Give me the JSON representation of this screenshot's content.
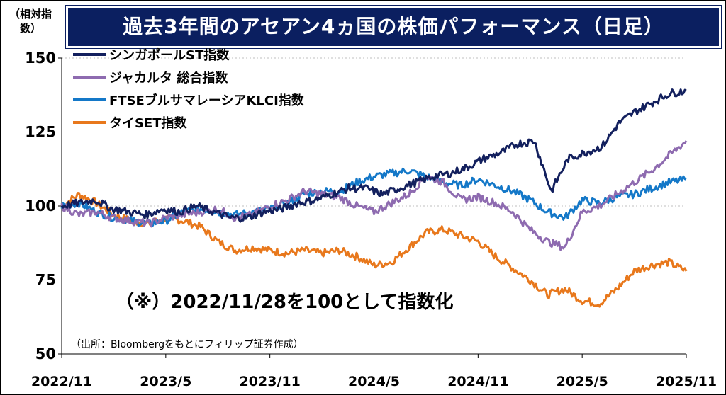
{
  "title": "過去3年間のアセアン4ヵ国の株価パフォーマンス（日足）",
  "unit_label": "（相対指数）",
  "note": "（※）2022/11/28を100として指数化",
  "source": "（出所：Bloombergをもとにフィリップ証券作成）",
  "colors": {
    "title_bg": "#0b1f60",
    "sgx": "#13205e",
    "jakarta": "#8e6bb0",
    "klci": "#1478c8",
    "set": "#e8781c",
    "grid": "#bfbfbf"
  },
  "chart_data": {
    "type": "line",
    "title": "過去3年間のアセアン4ヵ国の株価パフォーマンス（日足）",
    "ylabel": "（相対指数）",
    "xlabel": "",
    "ylim": [
      50,
      150
    ],
    "yticks": [
      50,
      75,
      100,
      125,
      150
    ],
    "xlim": [
      "2022-11-28",
      "2025-11-28"
    ],
    "xticks": [
      "2022/11",
      "2023/5",
      "2023/11",
      "2024/5",
      "2024/11",
      "2025/5",
      "2025/11"
    ],
    "grid": "horizontal dotted",
    "legend": "top-left",
    "series": [
      {
        "name": "シンガポールST指数",
        "color_key": "sgx",
        "x": [
          "2022-11",
          "2023-01",
          "2023-02",
          "2023-03",
          "2023-04",
          "2023-05",
          "2023-06",
          "2023-07",
          "2023-08",
          "2023-09",
          "2023-10",
          "2023-11",
          "2023-12",
          "2024-01",
          "2024-02",
          "2024-03",
          "2024-04",
          "2024-05",
          "2024-06",
          "2024-07",
          "2024-08",
          "2024-09",
          "2024-10",
          "2024-11",
          "2024-12",
          "2025-01",
          "2025-02",
          "2025-03",
          "2025-04a",
          "2025-04b",
          "2025-04c",
          "2025-05",
          "2025-06",
          "2025-07",
          "2025-08",
          "2025-09",
          "2025-10",
          "2025-11"
        ],
        "values": [
          100,
          101,
          102,
          99,
          98,
          97,
          99,
          98,
          100,
          98,
          96,
          96,
          98,
          99,
          101,
          102,
          104,
          106,
          106,
          104,
          106,
          108,
          110,
          111,
          113,
          116,
          118,
          121,
          122,
          105,
          116,
          118,
          120,
          128,
          132,
          135,
          138,
          139
        ]
      },
      {
        "name": "ジャカルタ 総合指数",
        "color_key": "jakarta",
        "x": [
          "2022-11",
          "2023-01",
          "2023-02",
          "2023-03",
          "2023-04",
          "2023-05",
          "2023-06",
          "2023-07",
          "2023-08",
          "2023-09",
          "2023-10",
          "2023-11",
          "2023-12",
          "2024-01",
          "2024-02",
          "2024-03",
          "2024-04",
          "2024-05",
          "2024-06",
          "2024-07",
          "2024-08",
          "2024-09",
          "2024-10",
          "2024-11",
          "2024-12",
          "2025-01",
          "2025-02",
          "2025-03",
          "2025-04a",
          "2025-04b",
          "2025-05",
          "2025-06",
          "2025-07",
          "2025-08",
          "2025-09",
          "2025-10",
          "2025-11"
        ],
        "values": [
          100,
          97,
          98,
          96,
          95,
          94,
          96,
          97,
          98,
          99,
          96,
          97,
          100,
          102,
          105,
          104,
          103,
          100,
          98,
          101,
          104,
          110,
          108,
          102,
          103,
          101,
          98,
          92,
          88,
          86,
          98,
          100,
          104,
          108,
          112,
          117,
          122
        ]
      },
      {
        "name": "FTSEブルサマレーシアKLCI指数",
        "color_key": "klci",
        "x": [
          "2022-11",
          "2023-01",
          "2023-02",
          "2023-03",
          "2023-04",
          "2023-05",
          "2023-06",
          "2023-07",
          "2023-08",
          "2023-09",
          "2023-10",
          "2023-11",
          "2023-12",
          "2024-01",
          "2024-02",
          "2024-03",
          "2024-04",
          "2024-05",
          "2024-06",
          "2024-07",
          "2024-08",
          "2024-09",
          "2024-10",
          "2024-11",
          "2024-12",
          "2025-01",
          "2025-02",
          "2025-03",
          "2025-04a",
          "2025-04b",
          "2025-05",
          "2025-06",
          "2025-07",
          "2025-08",
          "2025-09",
          "2025-10",
          "2025-11"
        ],
        "values": [
          100,
          101,
          98,
          96,
          95,
          94,
          95,
          98,
          99,
          98,
          97,
          98,
          99,
          101,
          104,
          105,
          105,
          108,
          110,
          111,
          112,
          110,
          108,
          107,
          109,
          107,
          105,
          102,
          98,
          96,
          102,
          101,
          103,
          104,
          106,
          108,
          109
        ]
      },
      {
        "name": "タイSET指数",
        "color_key": "set",
        "x": [
          "2022-11",
          "2023-01",
          "2023-02",
          "2023-03",
          "2023-04",
          "2023-05",
          "2023-06",
          "2023-07",
          "2023-08",
          "2023-09",
          "2023-10",
          "2023-11",
          "2023-12",
          "2024-01",
          "2024-02",
          "2024-03",
          "2024-04",
          "2024-05",
          "2024-06",
          "2024-07",
          "2024-08",
          "2024-09",
          "2024-10",
          "2024-11",
          "2024-12",
          "2025-01",
          "2025-02",
          "2025-03",
          "2025-04a",
          "2025-04b",
          "2025-05",
          "2025-06",
          "2025-07",
          "2025-08",
          "2025-09",
          "2025-10",
          "2025-11"
        ],
        "values": [
          100,
          104,
          101,
          97,
          95,
          94,
          96,
          95,
          93,
          88,
          85,
          86,
          85,
          84,
          85,
          84,
          85,
          83,
          80,
          81,
          86,
          91,
          92,
          90,
          88,
          83,
          79,
          75,
          70,
          72,
          68,
          67,
          72,
          78,
          80,
          81,
          78
        ]
      }
    ]
  }
}
